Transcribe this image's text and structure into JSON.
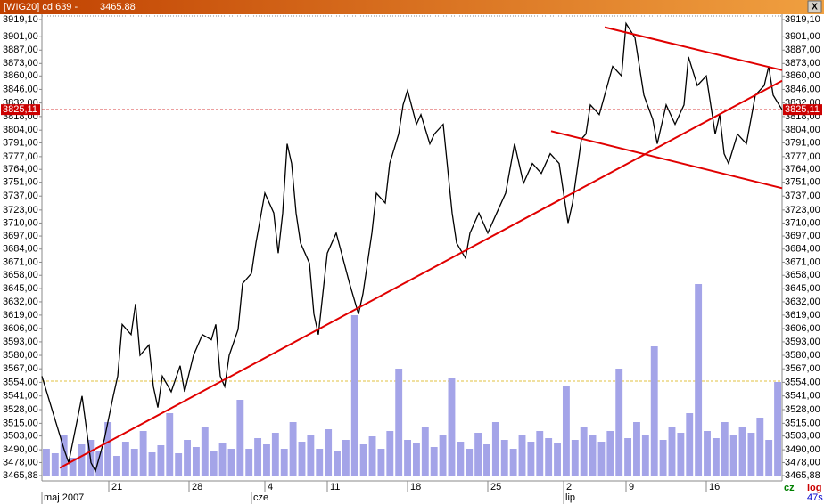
{
  "window": {
    "title": "[WIG20] cd:639 -",
    "last": "3465.88",
    "close": "X",
    "mode": "cz",
    "scale": "log",
    "timer": "47s"
  },
  "chart_data": {
    "type": "line",
    "log_scale": true,
    "color": "#000000",
    "x": [
      0,
      5,
      6,
      9,
      11,
      12,
      14,
      16,
      17,
      18,
      20,
      21,
      22,
      24,
      25,
      26,
      27,
      29,
      31,
      32,
      34,
      36,
      38,
      39,
      40,
      41,
      42,
      44,
      45,
      47,
      48,
      50,
      52,
      53,
      54,
      55,
      56,
      57,
      58,
      60,
      61,
      62,
      63,
      64,
      66,
      69,
      71,
      72,
      74,
      75,
      77,
      78,
      80,
      81,
      82,
      84,
      85,
      87,
      88,
      90,
      92,
      93,
      95,
      96,
      98,
      100,
      102,
      104,
      106,
      108,
      110,
      112,
      114,
      116,
      118,
      119,
      121,
      122,
      123,
      125,
      128,
      130,
      131,
      133,
      135,
      137,
      138,
      140,
      142,
      144,
      145,
      147,
      149,
      151,
      152,
      153,
      154,
      156,
      158,
      160,
      162,
      163,
      164,
      166
    ],
    "values": [
      3560,
      3490,
      3478,
      3541,
      3478,
      3470,
      3500,
      3541,
      3560,
      3610,
      3600,
      3630,
      3580,
      3590,
      3550,
      3530,
      3560,
      3545,
      3570,
      3545,
      3580,
      3600,
      3595,
      3610,
      3560,
      3550,
      3580,
      3605,
      3650,
      3660,
      3690,
      3740,
      3720,
      3680,
      3720,
      3790,
      3770,
      3720,
      3690,
      3670,
      3620,
      3600,
      3640,
      3680,
      3700,
      3650,
      3620,
      3640,
      3700,
      3740,
      3730,
      3770,
      3800,
      3830,
      3845,
      3810,
      3820,
      3790,
      3800,
      3810,
      3720,
      3690,
      3675,
      3700,
      3720,
      3700,
      3720,
      3740,
      3790,
      3750,
      3770,
      3760,
      3780,
      3770,
      3710,
      3730,
      3795,
      3800,
      3830,
      3820,
      3870,
      3860,
      3915,
      3900,
      3840,
      3815,
      3790,
      3830,
      3810,
      3830,
      3880,
      3850,
      3860,
      3800,
      3820,
      3780,
      3770,
      3800,
      3790,
      3840,
      3850,
      3870,
      3840,
      3825
    ],
    "xlim": [
      0,
      166
    ],
    "ylim": [
      3465.88,
      3919.1
    ],
    "yticks": [
      {
        "value": 3919.1,
        "label": "3919,10"
      },
      {
        "value": 3901,
        "label": "3901,00"
      },
      {
        "value": 3887,
        "label": "3887,00"
      },
      {
        "value": 3873,
        "label": "3873,00"
      },
      {
        "value": 3860,
        "label": "3860,00"
      },
      {
        "value": 3846,
        "label": "3846,00"
      },
      {
        "value": 3832,
        "label": "3832,00"
      },
      {
        "value": 3818,
        "label": "3818,00"
      },
      {
        "value": 3804,
        "label": "3804,00"
      },
      {
        "value": 3791,
        "label": "3791,00"
      },
      {
        "value": 3777,
        "label": "3777,00"
      },
      {
        "value": 3764,
        "label": "3764,00"
      },
      {
        "value": 3751,
        "label": "3751,00"
      },
      {
        "value": 3737,
        "label": "3737,00"
      },
      {
        "value": 3723,
        "label": "3723,00"
      },
      {
        "value": 3710,
        "label": "3710,00"
      },
      {
        "value": 3697,
        "label": "3697,00"
      },
      {
        "value": 3684,
        "label": "3684,00"
      },
      {
        "value": 3671,
        "label": "3671,00"
      },
      {
        "value": 3658,
        "label": "3658,00"
      },
      {
        "value": 3645,
        "label": "3645,00"
      },
      {
        "value": 3632,
        "label": "3632,00"
      },
      {
        "value": 3619,
        "label": "3619,00"
      },
      {
        "value": 3606,
        "label": "3606,00"
      },
      {
        "value": 3593,
        "label": "3593,00"
      },
      {
        "value": 3580,
        "label": "3580,00"
      },
      {
        "value": 3567,
        "label": "3567,00"
      },
      {
        "value": 3554,
        "label": "3554,00"
      },
      {
        "value": 3541,
        "label": "3541,00"
      },
      {
        "value": 3528,
        "label": "3528,00"
      },
      {
        "value": 3515,
        "label": "3515,00"
      },
      {
        "value": 3503,
        "label": "3503,00"
      },
      {
        "value": 3490,
        "label": "3490,00"
      },
      {
        "value": 3478,
        "label": "3478,00"
      },
      {
        "value": 3465.88,
        "label": "3465,88"
      }
    ],
    "xticks": [
      {
        "value": 15,
        "label": "21"
      },
      {
        "value": 33,
        "label": "28"
      },
      {
        "value": 50,
        "label": "4"
      },
      {
        "value": 64,
        "label": "11"
      },
      {
        "value": 82,
        "label": "18"
      },
      {
        "value": 100,
        "label": "25"
      },
      {
        "value": 117,
        "label": "2"
      },
      {
        "value": 131,
        "label": "9"
      },
      {
        "value": 149,
        "label": "16"
      }
    ],
    "months": [
      {
        "value": 0,
        "label": "maj 2007"
      },
      {
        "value": 47,
        "label": "cze"
      },
      {
        "value": 117,
        "label": "lip"
      }
    ],
    "current": {
      "value": 3825.11,
      "label": "3825,11",
      "color": "#cc0000"
    },
    "trendlines": [
      {
        "x": [
          4,
          166
        ],
        "values": [
          3473,
          3855
        ],
        "color": "#e00000"
      },
      {
        "x": [
          126.2,
          166
        ],
        "values": [
          3911,
          3866
        ],
        "color": "#e00000"
      },
      {
        "x": [
          114.2,
          166
        ],
        "values": [
          3803,
          3745
        ],
        "color": "#e00000"
      }
    ],
    "volume": {
      "color": "#a4a4e8",
      "lim": [
        0,
        220
      ],
      "values": [
        30,
        25,
        45,
        20,
        35,
        40,
        28,
        60,
        22,
        38,
        30,
        50,
        26,
        34,
        70,
        25,
        40,
        32,
        55,
        28,
        36,
        30,
        85,
        30,
        42,
        35,
        48,
        30,
        60,
        38,
        45,
        30,
        52,
        28,
        40,
        180,
        35,
        44,
        30,
        50,
        120,
        40,
        36,
        55,
        32,
        45,
        110,
        38,
        30,
        48,
        35,
        60,
        40,
        30,
        45,
        38,
        50,
        42,
        36,
        100,
        40,
        55,
        45,
        38,
        50,
        120,
        42,
        60,
        45,
        145,
        40,
        55,
        48,
        70,
        215,
        50,
        42,
        60,
        45,
        55,
        48,
        65,
        40,
        105
      ]
    }
  }
}
